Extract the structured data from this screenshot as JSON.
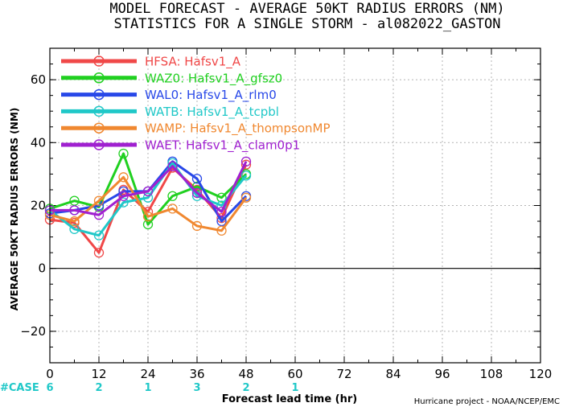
{
  "title_line1": "MODEL FORECAST - AVERAGE 50KT RADIUS ERRORS (NM)",
  "title_line2": "STATISTICS FOR A SINGLE STORM - al082022_GASTON",
  "cases_label": "#CASE",
  "credit": "Hurricane project - NOAA/NCEP/EMC",
  "colors": {
    "cases": "#20c8c8",
    "zero_line": "#000000",
    "grid": "#b4b4b4"
  },
  "chart_data": {
    "type": "line",
    "title": "MODEL FORECAST - AVERAGE 50KT RADIUS ERRORS (NM)",
    "subtitle": "STATISTICS FOR A SINGLE STORM - al082022_GASTON",
    "xlabel": "Forecast lead time (hr)",
    "ylabel": "AVERAGE 50KT RADIUS ERRORS (NM)",
    "xlim": [
      0,
      120
    ],
    "ylim": [
      -30,
      70
    ],
    "xticks": [
      0,
      12,
      24,
      36,
      48,
      60,
      72,
      84,
      96,
      108,
      120
    ],
    "yticks": [
      -20,
      0,
      20,
      40,
      60
    ],
    "grid": true,
    "legend_position": "top-left",
    "x": [
      0,
      6,
      12,
      18,
      24,
      30,
      36,
      42,
      48
    ],
    "series": [
      {
        "name": "HFSA: Hafsv1_A",
        "color": "#f04848",
        "values": [
          15.5,
          14.5,
          5,
          25,
          18,
          32,
          25,
          16,
          33
        ]
      },
      {
        "name": "WAZ0: Hafsv1_A_gfsz0",
        "color": "#20d020",
        "values": [
          19,
          21.5,
          19.5,
          36.5,
          14,
          23,
          26,
          22.5,
          30
        ]
      },
      {
        "name": "WAL0: Hafsv1_A_rlm0",
        "color": "#2848e8",
        "values": [
          17.5,
          18.5,
          20,
          24.5,
          24.5,
          34,
          28.5,
          15,
          23
        ]
      },
      {
        "name": "WATB: Hafsv1_A_tcpbl",
        "color": "#20c8c8",
        "values": [
          18.5,
          12.5,
          10.5,
          21,
          22.5,
          33.5,
          23,
          20,
          29.5
        ]
      },
      {
        "name": "WAMP: Hafsv1_A_thompsonMP",
        "color": "#f08830",
        "values": [
          17,
          15,
          21.5,
          29,
          16.5,
          19,
          13.5,
          12,
          22.5
        ]
      },
      {
        "name": "WAET: Hafsv1_A_clam0p1",
        "color": "#a020d0",
        "values": [
          18.5,
          18.5,
          17,
          23,
          24.5,
          32.5,
          24,
          18,
          34
        ]
      }
    ],
    "cases": {
      "x": [
        0,
        12,
        24,
        36,
        48,
        60
      ],
      "counts": [
        "6",
        "2",
        "1",
        "3",
        "2",
        "1"
      ]
    }
  }
}
